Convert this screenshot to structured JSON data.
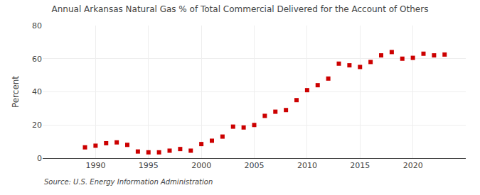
{
  "chart_data": {
    "type": "scatter",
    "title": "Annual Arkansas Natural Gas % of Total Commercial Delivered for the Account of Others",
    "ylabel": "Percent",
    "annotations": [
      "Source: U.S. Energy Information Administration"
    ],
    "x": [
      1989,
      1990,
      1991,
      1992,
      1993,
      1994,
      1995,
      1996,
      1997,
      1998,
      1999,
      2000,
      2001,
      2002,
      2003,
      2004,
      2005,
      2006,
      2007,
      2008,
      2009,
      2010,
      2011,
      2012,
      2013,
      2014,
      2015,
      2016,
      2017,
      2018,
      2019,
      2020,
      2021,
      2022,
      2023
    ],
    "values": [
      6.5,
      7.5,
      9.0,
      9.5,
      8.0,
      4.0,
      3.5,
      3.5,
      4.5,
      5.5,
      4.5,
      8.5,
      10.5,
      13.0,
      19.0,
      18.5,
      20.0,
      25.5,
      28.0,
      29.0,
      35.0,
      41.0,
      44.0,
      48.0,
      57.0,
      56.0,
      55.0,
      58.0,
      62.0,
      64.0,
      60.0,
      60.5,
      63.0,
      62.0,
      62.5
    ],
    "color": "#cc0000",
    "marker": "square",
    "xlim": [
      1985,
      2025
    ],
    "xticks": [
      1990,
      1995,
      2000,
      2005,
      2010,
      2015,
      2020
    ],
    "ylim": [
      0,
      80
    ],
    "yticks": [
      0,
      20,
      40,
      60,
      80
    ],
    "grid": true
  }
}
